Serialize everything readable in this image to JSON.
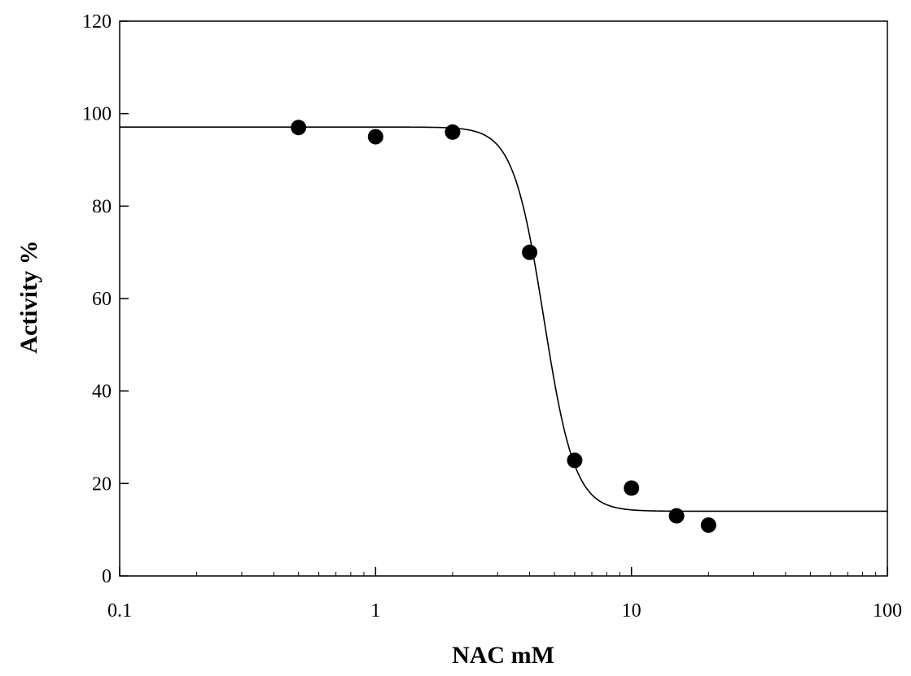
{
  "chart_data": {
    "type": "scatter",
    "title": "",
    "xlabel": "NAC mM",
    "ylabel": "Activity %",
    "x_scale": "log",
    "xlim": [
      0.1,
      100
    ],
    "ylim": [
      0,
      120
    ],
    "x_ticks": [
      {
        "value": 0.1,
        "label": "0.1"
      },
      {
        "value": 1,
        "label": "1"
      },
      {
        "value": 10,
        "label": "10"
      },
      {
        "value": 100,
        "label": "100"
      }
    ],
    "y_ticks": [
      {
        "value": 0,
        "label": "0"
      },
      {
        "value": 20,
        "label": "20"
      },
      {
        "value": 40,
        "label": "40"
      },
      {
        "value": 60,
        "label": "60"
      },
      {
        "value": 80,
        "label": "80"
      },
      {
        "value": 100,
        "label": "100"
      },
      {
        "value": 120,
        "label": "120"
      }
    ],
    "grid": false,
    "legend": "none",
    "series": [
      {
        "kind": "points",
        "marker": "filled-circle",
        "color": "#000000",
        "x": [
          0.5,
          1,
          2,
          4,
          6,
          10,
          15,
          20
        ],
        "y": [
          97,
          95,
          96,
          70,
          25,
          19,
          13,
          11
        ]
      },
      {
        "kind": "fitted-curve",
        "model": "sigmoid",
        "color": "#000000",
        "top": 97.1,
        "bottom": 14,
        "x50": 4.55,
        "slope": 7.2
      }
    ]
  }
}
